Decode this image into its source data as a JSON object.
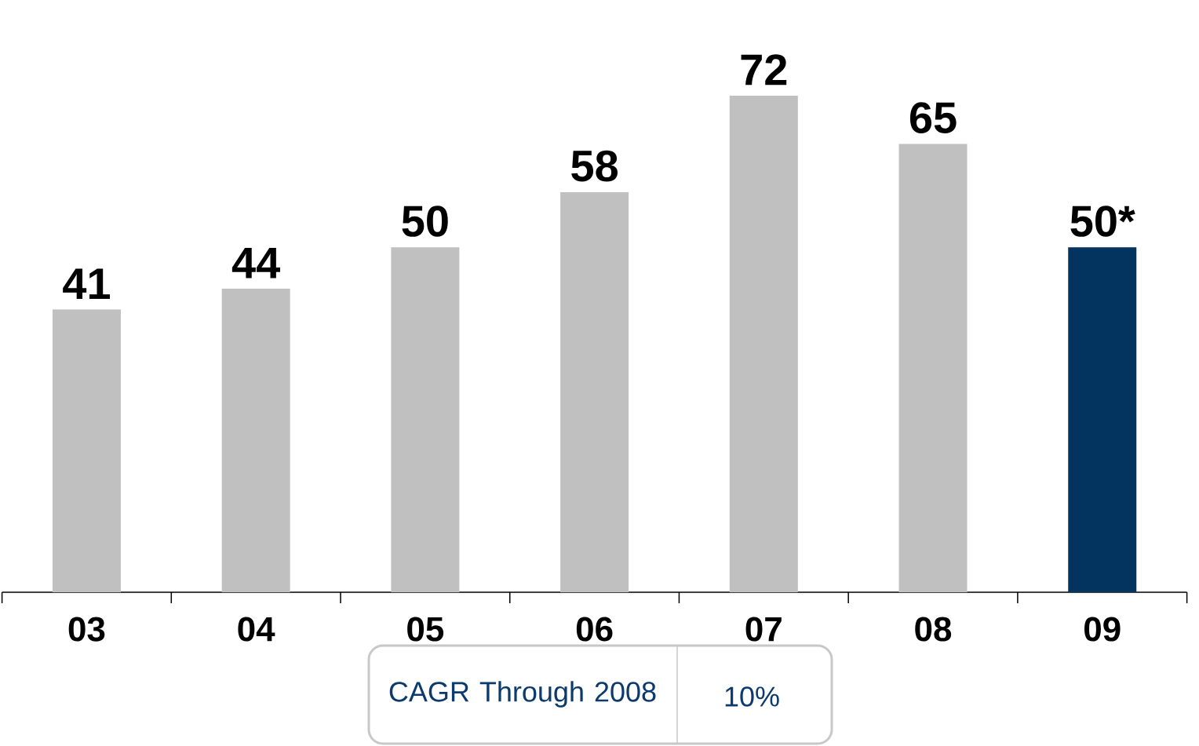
{
  "chart_data": {
    "type": "bar",
    "categories": [
      "03",
      "04",
      "05",
      "06",
      "07",
      "08",
      "09"
    ],
    "values": [
      41,
      44,
      50,
      58,
      72,
      65,
      50
    ],
    "colors": [
      "#c0c0c0",
      "#c0c0c0",
      "#c0c0c0",
      "#c0c0c0",
      "#c0c0c0",
      "#c0c0c0",
      "#03335f"
    ],
    "value_labels": [
      "41",
      "44",
      "50",
      "58",
      "72",
      "65",
      "50*"
    ],
    "annotations": [
      "CAGR Through 2008",
      "10%"
    ]
  }
}
